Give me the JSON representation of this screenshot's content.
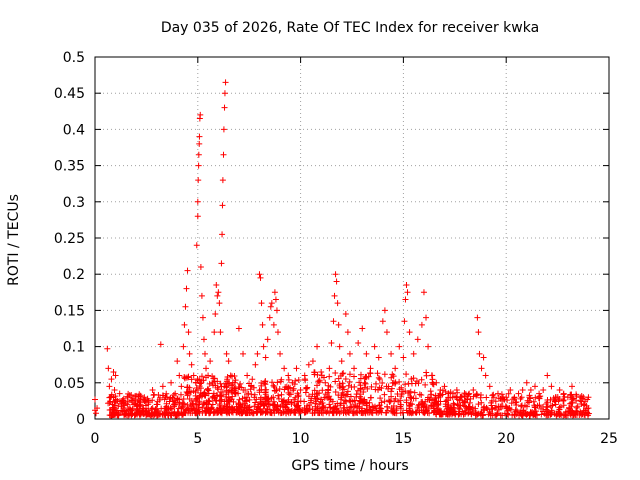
{
  "chart_data": {
    "type": "scatter",
    "title": "Day 035 of 2026, Rate Of TEC Index for receiver kwka",
    "xlabel": "GPS time / hours",
    "ylabel": "ROTI / TECUs",
    "xlim": [
      0,
      25
    ],
    "ylim": [
      0,
      0.5
    ],
    "x_ticks": [
      {
        "value": 0,
        "label": "0"
      },
      {
        "value": 5,
        "label": "5"
      },
      {
        "value": 10,
        "label": "10"
      },
      {
        "value": 15,
        "label": "15"
      },
      {
        "value": 20,
        "label": "20"
      },
      {
        "value": 25,
        "label": "25"
      }
    ],
    "y_ticks": [
      {
        "value": 0,
        "label": "0"
      },
      {
        "value": 0.05,
        "label": "0.05"
      },
      {
        "value": 0.1,
        "label": "0.1"
      },
      {
        "value": 0.15,
        "label": "0.15"
      },
      {
        "value": 0.2,
        "label": "0.2"
      },
      {
        "value": 0.25,
        "label": "0.25"
      },
      {
        "value": 0.3,
        "label": "0.3"
      },
      {
        "value": 0.35,
        "label": "0.35"
      },
      {
        "value": 0.4,
        "label": "0.4"
      },
      {
        "value": 0.45,
        "label": "0.45"
      },
      {
        "value": 0.5,
        "label": "0.5"
      }
    ],
    "grid": true,
    "marker": "plus",
    "color": "#ff0000",
    "series": [
      {
        "points": [
          [
            0.0,
            0.012
          ],
          [
            0.0,
            0.027
          ],
          [
            0.05,
            0.008
          ],
          [
            0.1,
            0.015
          ],
          [
            0.6,
            0.097
          ],
          [
            0.65,
            0.07
          ],
          [
            0.7,
            0.045
          ],
          [
            0.75,
            0.03
          ],
          [
            0.8,
            0.055
          ],
          [
            0.85,
            0.02
          ],
          [
            0.9,
            0.065
          ],
          [
            0.95,
            0.04
          ],
          [
            1.0,
            0.06
          ],
          [
            1.1,
            0.025
          ],
          [
            1.2,
            0.035
          ],
          [
            1.3,
            0.018
          ],
          [
            1.4,
            0.028
          ],
          [
            1.5,
            0.022
          ],
          [
            1.6,
            0.03
          ],
          [
            1.7,
            0.015
          ],
          [
            1.8,
            0.025
          ],
          [
            1.9,
            0.02
          ],
          [
            2.0,
            0.032
          ],
          [
            2.2,
            0.018
          ],
          [
            2.4,
            0.03
          ],
          [
            2.6,
            0.025
          ],
          [
            2.8,
            0.04
          ],
          [
            3.0,
            0.02
          ],
          [
            3.2,
            0.103
          ],
          [
            3.3,
            0.045
          ],
          [
            3.5,
            0.03
          ],
          [
            3.7,
            0.05
          ],
          [
            3.9,
            0.035
          ],
          [
            4.0,
            0.08
          ],
          [
            4.1,
            0.06
          ],
          [
            4.2,
            0.045
          ],
          [
            4.3,
            0.1
          ],
          [
            4.35,
            0.13
          ],
          [
            4.4,
            0.155
          ],
          [
            4.45,
            0.18
          ],
          [
            4.5,
            0.205
          ],
          [
            4.55,
            0.12
          ],
          [
            4.6,
            0.09
          ],
          [
            4.7,
            0.075
          ],
          [
            4.8,
            0.06
          ],
          [
            4.9,
            0.05
          ],
          [
            4.95,
            0.24
          ],
          [
            5.0,
            0.28
          ],
          [
            5.0,
            0.3
          ],
          [
            5.02,
            0.33
          ],
          [
            5.04,
            0.35
          ],
          [
            5.05,
            0.365
          ],
          [
            5.07,
            0.38
          ],
          [
            5.08,
            0.39
          ],
          [
            5.1,
            0.415
          ],
          [
            5.12,
            0.42
          ],
          [
            5.15,
            0.21
          ],
          [
            5.2,
            0.17
          ],
          [
            5.25,
            0.14
          ],
          [
            5.3,
            0.11
          ],
          [
            5.35,
            0.09
          ],
          [
            5.4,
            0.07
          ],
          [
            5.5,
            0.06
          ],
          [
            5.6,
            0.08
          ],
          [
            5.7,
            0.05
          ],
          [
            5.8,
            0.12
          ],
          [
            5.85,
            0.145
          ],
          [
            5.9,
            0.185
          ],
          [
            5.95,
            0.17
          ],
          [
            6.0,
            0.175
          ],
          [
            6.05,
            0.16
          ],
          [
            6.1,
            0.12
          ],
          [
            6.15,
            0.215
          ],
          [
            6.18,
            0.255
          ],
          [
            6.2,
            0.295
          ],
          [
            6.22,
            0.33
          ],
          [
            6.25,
            0.365
          ],
          [
            6.27,
            0.4
          ],
          [
            6.3,
            0.43
          ],
          [
            6.32,
            0.45
          ],
          [
            6.35,
            0.465
          ],
          [
            6.4,
            0.09
          ],
          [
            6.5,
            0.08
          ],
          [
            6.6,
            0.06
          ],
          [
            6.8,
            0.05
          ],
          [
            7.0,
            0.125
          ],
          [
            7.2,
            0.09
          ],
          [
            7.4,
            0.06
          ],
          [
            7.6,
            0.045
          ],
          [
            7.8,
            0.075
          ],
          [
            7.9,
            0.09
          ],
          [
            8.0,
            0.2
          ],
          [
            8.05,
            0.195
          ],
          [
            8.1,
            0.16
          ],
          [
            8.15,
            0.13
          ],
          [
            8.2,
            0.1
          ],
          [
            8.3,
            0.085
          ],
          [
            8.4,
            0.11
          ],
          [
            8.5,
            0.14
          ],
          [
            8.55,
            0.155
          ],
          [
            8.6,
            0.16
          ],
          [
            8.7,
            0.13
          ],
          [
            8.75,
            0.175
          ],
          [
            8.8,
            0.165
          ],
          [
            8.85,
            0.15
          ],
          [
            8.9,
            0.12
          ],
          [
            9.0,
            0.09
          ],
          [
            9.2,
            0.07
          ],
          [
            9.4,
            0.06
          ],
          [
            9.6,
            0.05
          ],
          [
            9.8,
            0.07
          ],
          [
            10.0,
            0.04
          ],
          [
            10.2,
            0.06
          ],
          [
            10.4,
            0.075
          ],
          [
            10.6,
            0.08
          ],
          [
            10.8,
            0.1
          ],
          [
            11.0,
            0.065
          ],
          [
            11.2,
            0.05
          ],
          [
            11.4,
            0.07
          ],
          [
            11.5,
            0.105
          ],
          [
            11.6,
            0.135
          ],
          [
            11.65,
            0.17
          ],
          [
            11.7,
            0.2
          ],
          [
            11.75,
            0.19
          ],
          [
            11.8,
            0.16
          ],
          [
            11.85,
            0.13
          ],
          [
            11.9,
            0.1
          ],
          [
            12.0,
            0.08
          ],
          [
            12.2,
            0.145
          ],
          [
            12.3,
            0.12
          ],
          [
            12.4,
            0.09
          ],
          [
            12.6,
            0.07
          ],
          [
            12.8,
            0.105
          ],
          [
            13.0,
            0.125
          ],
          [
            13.2,
            0.09
          ],
          [
            13.4,
            0.07
          ],
          [
            13.6,
            0.1
          ],
          [
            13.8,
            0.085
          ],
          [
            14.0,
            0.135
          ],
          [
            14.1,
            0.15
          ],
          [
            14.2,
            0.12
          ],
          [
            14.4,
            0.09
          ],
          [
            14.6,
            0.07
          ],
          [
            14.8,
            0.1
          ],
          [
            15.0,
            0.085
          ],
          [
            15.05,
            0.135
          ],
          [
            15.1,
            0.165
          ],
          [
            15.15,
            0.185
          ],
          [
            15.2,
            0.175
          ],
          [
            15.3,
            0.12
          ],
          [
            15.5,
            0.09
          ],
          [
            15.7,
            0.11
          ],
          [
            15.9,
            0.13
          ],
          [
            16.0,
            0.175
          ],
          [
            16.1,
            0.14
          ],
          [
            16.2,
            0.1
          ],
          [
            16.4,
            0.06
          ],
          [
            16.6,
            0.05
          ],
          [
            16.8,
            0.04
          ],
          [
            17.0,
            0.045
          ],
          [
            17.2,
            0.035
          ],
          [
            17.4,
            0.03
          ],
          [
            17.6,
            0.04
          ],
          [
            17.8,
            0.03
          ],
          [
            18.0,
            0.025
          ],
          [
            18.2,
            0.035
          ],
          [
            18.4,
            0.04
          ],
          [
            18.6,
            0.14
          ],
          [
            18.65,
            0.12
          ],
          [
            18.7,
            0.09
          ],
          [
            18.8,
            0.07
          ],
          [
            18.9,
            0.085
          ],
          [
            19.0,
            0.06
          ],
          [
            19.2,
            0.045
          ],
          [
            19.4,
            0.03
          ],
          [
            19.6,
            0.035
          ],
          [
            19.8,
            0.025
          ],
          [
            20.0,
            0.03
          ],
          [
            20.2,
            0.04
          ],
          [
            20.4,
            0.03
          ],
          [
            20.6,
            0.035
          ],
          [
            20.8,
            0.04
          ],
          [
            21.0,
            0.05
          ],
          [
            21.2,
            0.04
          ],
          [
            21.4,
            0.045
          ],
          [
            21.6,
            0.035
          ],
          [
            21.8,
            0.04
          ],
          [
            22.0,
            0.06
          ],
          [
            22.2,
            0.045
          ],
          [
            22.4,
            0.03
          ],
          [
            22.6,
            0.04
          ],
          [
            22.8,
            0.035
          ],
          [
            23.0,
            0.03
          ],
          [
            23.2,
            0.045
          ],
          [
            23.4,
            0.025
          ],
          [
            23.6,
            0.03
          ],
          [
            23.8,
            0.02
          ],
          [
            24.0,
            0.015
          ],
          [
            24.0,
            0.03
          ]
        ]
      }
    ],
    "dense_band": {
      "segments": [
        [
          0.6,
          4.3,
          0.005,
          0.035,
          260
        ],
        [
          4.3,
          7.0,
          0.008,
          0.06,
          260
        ],
        [
          7.0,
          10.0,
          0.008,
          0.055,
          240
        ],
        [
          10.0,
          16.5,
          0.008,
          0.065,
          420
        ],
        [
          16.5,
          18.5,
          0.006,
          0.04,
          140
        ],
        [
          18.5,
          24.05,
          0.005,
          0.035,
          280
        ]
      ],
      "seed": 35
    }
  }
}
